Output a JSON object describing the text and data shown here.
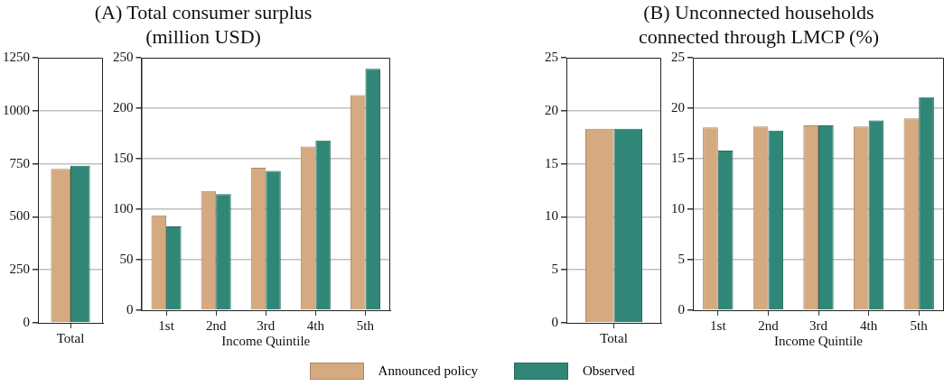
{
  "chart_data": [
    {
      "type": "bar",
      "categories": [
        "Total"
      ],
      "series": [
        {
          "name": "Announced policy",
          "color": "#d5aa80",
          "values": [
            726
          ]
        },
        {
          "name": "Observed",
          "color": "#318777",
          "values": [
            741
          ]
        }
      ],
      "ylim": [
        0,
        1250
      ],
      "yticks": [
        0,
        250,
        500,
        750,
        1000,
        1250
      ],
      "grid": "y",
      "legend": "bottom"
    },
    {
      "type": "bar",
      "title": "(A) Total consumer surplus (million USD)",
      "xlabel": "Income Quintile",
      "categories": [
        "1st",
        "2nd",
        "3rd",
        "4th",
        "5th"
      ],
      "series": [
        {
          "color": "#d5aa80",
          "values": [
            94,
            118,
            141,
            162,
            213
          ]
        },
        {
          "color": "#318777",
          "values": [
            83,
            115,
            138,
            168,
            239
          ]
        }
      ],
      "ylim": [
        0,
        250
      ],
      "yticks": [
        0,
        50,
        100,
        150,
        200,
        250
      ],
      "grid": "y"
    },
    {
      "type": "bar",
      "categories": [
        "Total"
      ],
      "series": [
        {
          "color": "#d5aa80",
          "values": [
            18.3
          ]
        },
        {
          "color": "#318777",
          "values": [
            18.3
          ]
        }
      ],
      "ylim": [
        0,
        25
      ],
      "yticks": [
        0,
        5,
        10,
        15,
        20,
        25
      ],
      "grid": "y"
    },
    {
      "type": "bar",
      "title": "(B) Unconnected households connected through LMCP (%)",
      "xlabel": "Income Quintile",
      "categories": [
        "1st",
        "2nd",
        "3rd",
        "4th",
        "5th"
      ],
      "series": [
        {
          "color": "#d5aa80",
          "values": [
            18.1,
            18.2,
            18.3,
            18.2,
            19.0
          ]
        },
        {
          "color": "#318777",
          "values": [
            15.8,
            17.8,
            18.3,
            18.8,
            21.1
          ]
        }
      ],
      "ylim": [
        0,
        25
      ],
      "yticks": [
        0,
        5,
        10,
        15,
        20,
        25
      ],
      "grid": "y"
    }
  ]
}
